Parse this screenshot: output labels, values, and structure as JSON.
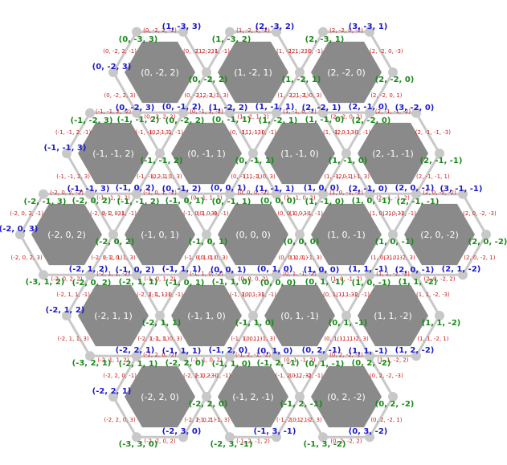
{
  "colors": {
    "cell_fill": "#8a8a8a",
    "cell_text": "#ffffff",
    "edge_line": "#c8c8c8",
    "vertex_dot": "#c8c8c8",
    "vertex_left": "#1a1acc",
    "vertex_right": "#1a8a1a",
    "edge_label": "#cc1a1a"
  },
  "grid": {
    "hexes": [
      {
        "q": -2,
        "r": 0,
        "s": 2
      },
      {
        "q": -1,
        "r": -1,
        "s": 2
      },
      {
        "q": 0,
        "r": -2,
        "s": 2
      },
      {
        "q": -2,
        "r": 1,
        "s": 1
      },
      {
        "q": -1,
        "r": 0,
        "s": 1
      },
      {
        "q": 0,
        "r": -1,
        "s": 1
      },
      {
        "q": 1,
        "r": -2,
        "s": 1
      },
      {
        "q": -2,
        "r": 2,
        "s": 0
      },
      {
        "q": -1,
        "r": 1,
        "s": 0
      },
      {
        "q": 0,
        "r": 0,
        "s": 0
      },
      {
        "q": 1,
        "r": -1,
        "s": 0
      },
      {
        "q": 2,
        "r": -2,
        "s": 0
      },
      {
        "q": -1,
        "r": 2,
        "s": -1
      },
      {
        "q": 0,
        "r": 1,
        "s": -1
      },
      {
        "q": 1,
        "r": 0,
        "s": -1
      },
      {
        "q": 2,
        "r": -1,
        "s": -1
      },
      {
        "q": 0,
        "r": 2,
        "s": -2
      },
      {
        "q": 1,
        "r": 1,
        "s": -2
      },
      {
        "q": 2,
        "r": 0,
        "s": -2
      }
    ]
  }
}
